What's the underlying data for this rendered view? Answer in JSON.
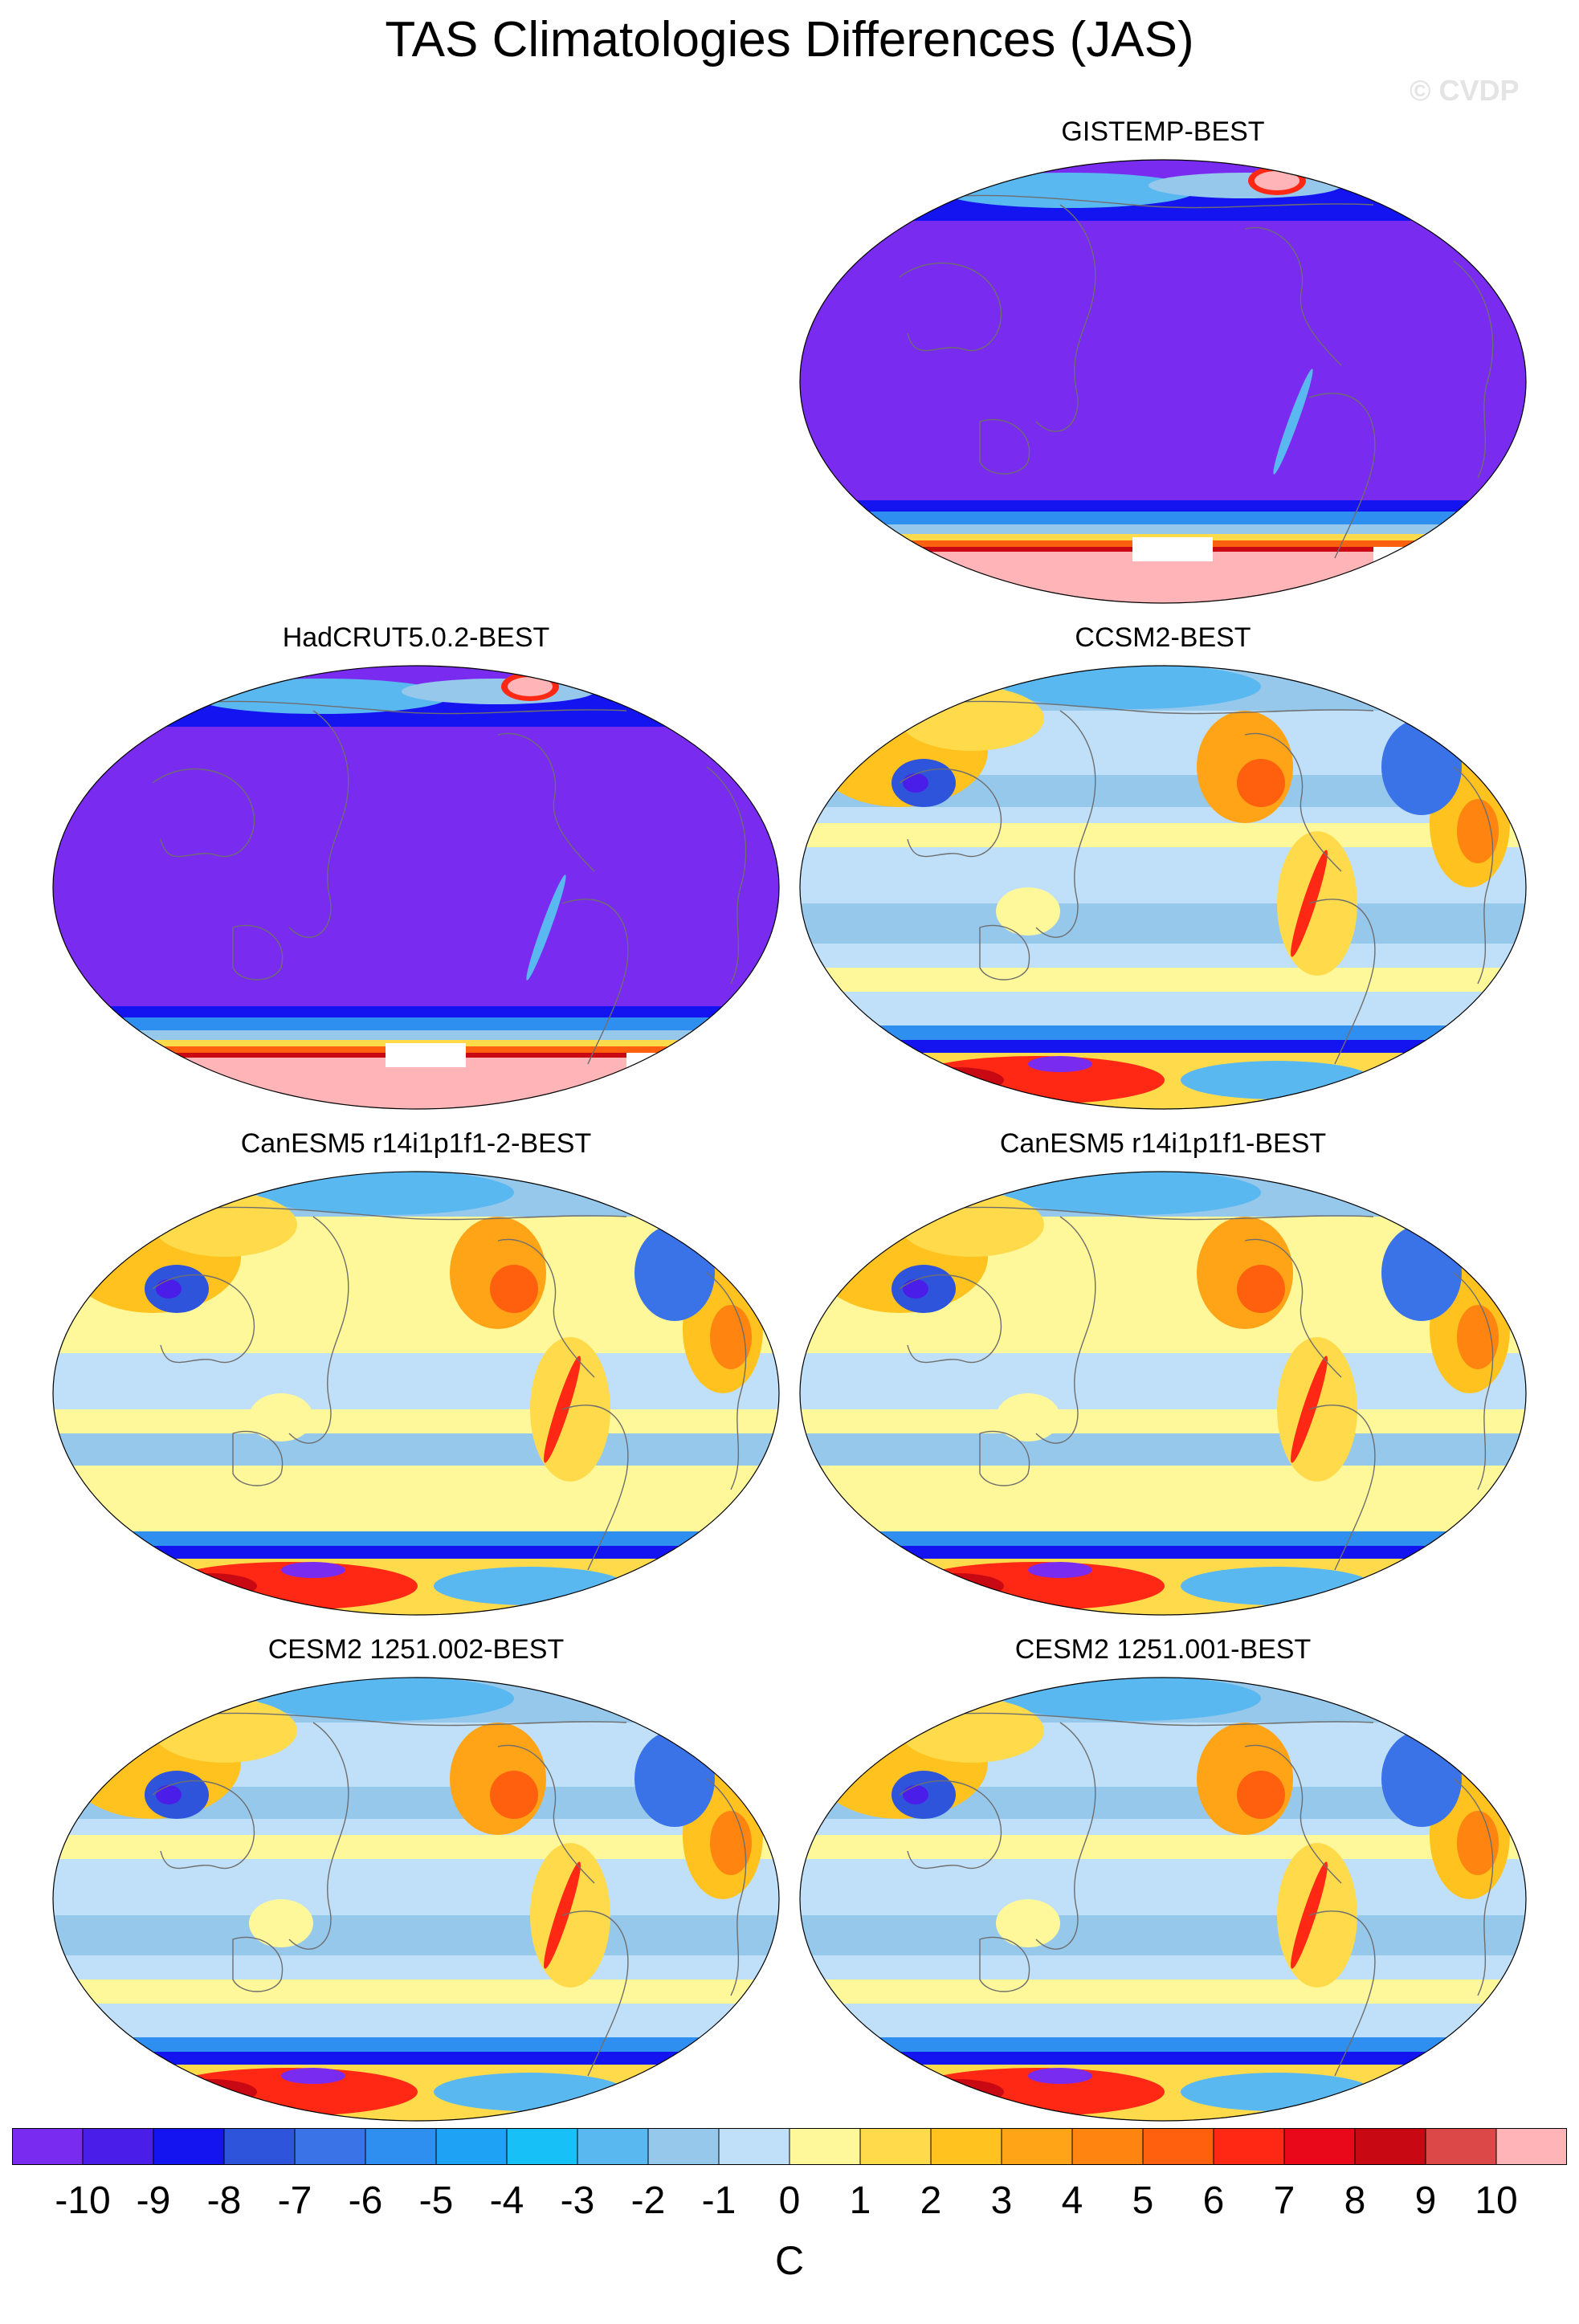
{
  "title": "TAS Climatologies Differences (JAS)",
  "watermark": "© CVDP",
  "panels": [
    {
      "title": "GISTEMP-BEST",
      "pattern": "obs",
      "col": 1,
      "row": 0
    },
    {
      "title": "HadCRUT5.0.2-BEST",
      "pattern": "obs",
      "col": 0,
      "row": 1
    },
    {
      "title": "CCSM2-BEST",
      "pattern": "model-cool",
      "col": 1,
      "row": 1
    },
    {
      "title": "CanESM5 r14i1p1f1-2-BEST",
      "pattern": "model-warm",
      "col": 0,
      "row": 2
    },
    {
      "title": "CanESM5 r14i1p1f1-BEST",
      "pattern": "model-warm",
      "col": 1,
      "row": 2
    },
    {
      "title": "CESM2 1251.002-BEST",
      "pattern": "model-mixed",
      "col": 0,
      "row": 3
    },
    {
      "title": "CESM2 1251.001-BEST",
      "pattern": "model-mixed",
      "col": 1,
      "row": 3
    }
  ],
  "colorbar": {
    "unit": "C",
    "ticks": [
      "-10",
      "-9",
      "-8",
      "-7",
      "-6",
      "-5",
      "-4",
      "-3",
      "-2",
      "-1",
      "0",
      "1",
      "2",
      "3",
      "4",
      "5",
      "6",
      "7",
      "8",
      "9",
      "10"
    ],
    "colors": [
      "#7a2bf0",
      "#4a1ee8",
      "#1414f0",
      "#2f54dc",
      "#3a72e8",
      "#2f8ff0",
      "#1ea2f5",
      "#18c0f8",
      "#5ab8f0",
      "#96c8ec",
      "#bfe0f8",
      "#fff89a",
      "#ffdb4c",
      "#ffc21e",
      "#ffa416",
      "#ff8410",
      "#ff600e",
      "#ff2814",
      "#e8081a",
      "#c80812",
      "#dc4848",
      "#ffb4b8"
    ]
  }
}
